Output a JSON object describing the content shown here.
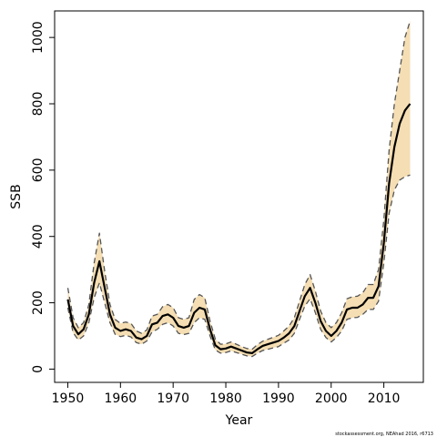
{
  "chart_data": {
    "type": "line",
    "title": "",
    "xlabel": "Year",
    "ylabel": "SSB",
    "xlim": [
      1947.5,
      2017.5
    ],
    "ylim": [
      -40,
      1080
    ],
    "xticks": [
      1950,
      1960,
      1970,
      1980,
      1990,
      2000,
      2010
    ],
    "yticks": [
      0,
      200,
      400,
      600,
      800,
      1000
    ],
    "grid": false,
    "legend": "none",
    "credit": "stockassessment.org,  NEAhad  2016,  r6713",
    "colors": {
      "band": "#F5DEB3",
      "line": "#000000",
      "bound": "#555555",
      "axis": "#000000"
    },
    "series": [
      {
        "role": "estimate",
        "x": [
          1950,
          1951,
          1952,
          1953,
          1954,
          1955,
          1956,
          1957,
          1958,
          1959,
          1960,
          1961,
          1962,
          1963,
          1964,
          1965,
          1966,
          1967,
          1968,
          1969,
          1970,
          1971,
          1972,
          1973,
          1974,
          1975,
          1976,
          1977,
          1978,
          1979,
          1980,
          1981,
          1982,
          1983,
          1984,
          1985,
          1986,
          1987,
          1988,
          1989,
          1990,
          1991,
          1992,
          1993,
          1994,
          1995,
          1996,
          1997,
          1998,
          1999,
          2000,
          2001,
          2002,
          2003,
          2004,
          2005,
          2006,
          2007,
          2008,
          2009,
          2010,
          2011,
          2012,
          2013,
          2014,
          2015
        ],
        "y": [
          210,
          130,
          105,
          120,
          165,
          260,
          325,
          245,
          165,
          125,
          115,
          120,
          115,
          95,
          90,
          100,
          135,
          140,
          160,
          165,
          155,
          130,
          125,
          130,
          170,
          185,
          180,
          120,
          72,
          60,
          62,
          68,
          62,
          56,
          50,
          48,
          60,
          70,
          75,
          80,
          85,
          95,
          108,
          130,
          175,
          220,
          245,
          200,
          145,
          115,
          100,
          115,
          140,
          180,
          185,
          185,
          195,
          215,
          215,
          250,
          380,
          560,
          670,
          740,
          780,
          800
        ]
      },
      {
        "role": "lower",
        "x": [
          1950,
          1951,
          1952,
          1953,
          1954,
          1955,
          1956,
          1957,
          1958,
          1959,
          1960,
          1961,
          1962,
          1963,
          1964,
          1965,
          1966,
          1967,
          1968,
          1969,
          1970,
          1971,
          1972,
          1973,
          1974,
          1975,
          1976,
          1977,
          1978,
          1979,
          1980,
          1981,
          1982,
          1983,
          1984,
          1985,
          1986,
          1987,
          1988,
          1989,
          1990,
          1991,
          1992,
          1993,
          1994,
          1995,
          1996,
          1997,
          1998,
          1999,
          2000,
          2001,
          2002,
          2003,
          2004,
          2005,
          2006,
          2007,
          2008,
          2009,
          2010,
          2011,
          2012,
          2013,
          2014,
          2015
        ],
        "y": [
          185,
          110,
          88,
          100,
          140,
          215,
          260,
          200,
          140,
          105,
          98,
          102,
          97,
          80,
          75,
          85,
          112,
          120,
          135,
          140,
          130,
          108,
          104,
          108,
          140,
          155,
          150,
          100,
          58,
          48,
          50,
          55,
          50,
          45,
          40,
          38,
          48,
          56,
          60,
          64,
          68,
          78,
          88,
          108,
          150,
          190,
          212,
          170,
          120,
          95,
          82,
          95,
          115,
          150,
          155,
          156,
          165,
          180,
          180,
          205,
          320,
          470,
          540,
          570,
          580,
          585
        ]
      },
      {
        "role": "upper",
        "x": [
          1950,
          1951,
          1952,
          1953,
          1954,
          1955,
          1956,
          1957,
          1958,
          1959,
          1960,
          1961,
          1962,
          1963,
          1964,
          1965,
          1966,
          1967,
          1968,
          1969,
          1970,
          1971,
          1972,
          1973,
          1974,
          1975,
          1976,
          1977,
          1978,
          1979,
          1980,
          1981,
          1982,
          1983,
          1984,
          1985,
          1986,
          1987,
          1988,
          1989,
          1990,
          1991,
          1992,
          1993,
          1994,
          1995,
          1996,
          1997,
          1998,
          1999,
          2000,
          2001,
          2002,
          2003,
          2004,
          2005,
          2006,
          2007,
          2008,
          2009,
          2010,
          2011,
          2012,
          2013,
          2014,
          2015
        ],
        "y": [
          245,
          155,
          125,
          140,
          195,
          320,
          410,
          295,
          195,
          150,
          138,
          142,
          138,
          115,
          108,
          118,
          160,
          165,
          188,
          195,
          185,
          155,
          150,
          155,
          210,
          225,
          215,
          145,
          90,
          75,
          76,
          82,
          75,
          68,
          62,
          60,
          74,
          84,
          90,
          96,
          102,
          115,
          130,
          155,
          205,
          255,
          285,
          235,
          175,
          140,
          125,
          140,
          170,
          212,
          218,
          220,
          230,
          255,
          255,
          300,
          450,
          660,
          800,
          900,
          1000,
          1050
        ]
      }
    ]
  }
}
